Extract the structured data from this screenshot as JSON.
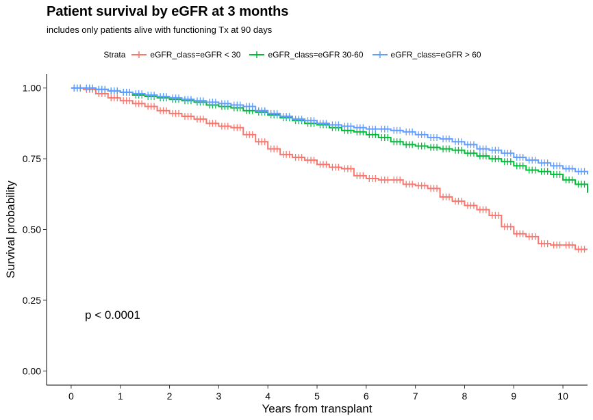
{
  "chart_data": {
    "type": "line",
    "title": "Patient survival by eGFR at 3 months",
    "subtitle": "includes only patients alive with functioning Tx at 90 days",
    "xlabel": "Years from transplant",
    "ylabel": "Survival probability",
    "xlim": [
      -0.5,
      10.5
    ],
    "ylim": [
      -0.05,
      1.05
    ],
    "x_ticks": [
      0,
      1,
      2,
      3,
      4,
      5,
      6,
      7,
      8,
      9,
      10
    ],
    "y_ticks": [
      0.0,
      0.25,
      0.5,
      0.75,
      1.0
    ],
    "y_tick_labels": [
      "0.00",
      "0.25",
      "0.50",
      "0.75",
      "1.00"
    ],
    "grid": false,
    "legend": {
      "title": "Strata",
      "position": "top"
    },
    "annotation": "p < 0.0001",
    "series": [
      {
        "name": "eGFR_class=eGFR < 30",
        "color": "#F8766D",
        "x": [
          0,
          0.25,
          0.5,
          0.75,
          1.0,
          1.25,
          1.5,
          1.75,
          2.0,
          2.25,
          2.5,
          2.75,
          3.0,
          3.25,
          3.5,
          3.75,
          4.0,
          4.25,
          4.5,
          4.75,
          5.0,
          5.25,
          5.5,
          5.75,
          6.0,
          6.25,
          6.5,
          6.75,
          7.0,
          7.25,
          7.5,
          7.75,
          8.0,
          8.25,
          8.5,
          8.75,
          9.0,
          9.25,
          9.5,
          9.75,
          10.0,
          10.25,
          10.5
        ],
        "y": [
          1.0,
          0.995,
          0.98,
          0.965,
          0.955,
          0.945,
          0.935,
          0.92,
          0.91,
          0.9,
          0.89,
          0.875,
          0.865,
          0.86,
          0.835,
          0.81,
          0.785,
          0.765,
          0.755,
          0.745,
          0.73,
          0.72,
          0.715,
          0.69,
          0.68,
          0.675,
          0.675,
          0.66,
          0.655,
          0.645,
          0.615,
          0.6,
          0.585,
          0.57,
          0.55,
          0.51,
          0.485,
          0.475,
          0.45,
          0.445,
          0.445,
          0.43,
          0.43
        ]
      },
      {
        "name": "eGFR_class=eGFR 30-60",
        "color": "#00BA38",
        "x": [
          0,
          0.25,
          0.5,
          0.75,
          1.0,
          1.25,
          1.5,
          1.75,
          2.0,
          2.25,
          2.5,
          2.75,
          3.0,
          3.25,
          3.5,
          3.75,
          4.0,
          4.25,
          4.5,
          4.75,
          5.0,
          5.25,
          5.5,
          5.75,
          6.0,
          6.25,
          6.5,
          6.75,
          7.0,
          7.25,
          7.5,
          7.75,
          8.0,
          8.25,
          8.5,
          8.75,
          9.0,
          9.25,
          9.5,
          9.75,
          10.0,
          10.25,
          10.5
        ],
        "y": [
          1.0,
          1.0,
          0.995,
          0.99,
          0.985,
          0.975,
          0.97,
          0.965,
          0.96,
          0.955,
          0.95,
          0.94,
          0.935,
          0.93,
          0.92,
          0.915,
          0.905,
          0.895,
          0.885,
          0.875,
          0.87,
          0.86,
          0.85,
          0.845,
          0.835,
          0.825,
          0.81,
          0.8,
          0.795,
          0.79,
          0.785,
          0.78,
          0.77,
          0.76,
          0.75,
          0.74,
          0.725,
          0.71,
          0.705,
          0.695,
          0.675,
          0.66,
          0.63
        ]
      },
      {
        "name": "eGFR_class=eGFR > 60",
        "color": "#619CFF",
        "x": [
          0,
          0.25,
          0.5,
          0.75,
          1.0,
          1.25,
          1.5,
          1.75,
          2.0,
          2.25,
          2.5,
          2.75,
          3.0,
          3.25,
          3.5,
          3.75,
          4.0,
          4.25,
          4.5,
          4.75,
          5.0,
          5.25,
          5.5,
          5.75,
          6.0,
          6.25,
          6.5,
          6.75,
          7.0,
          7.25,
          7.5,
          7.75,
          8.0,
          8.25,
          8.5,
          8.75,
          9.0,
          9.25,
          9.5,
          9.75,
          10.0,
          10.25,
          10.5
        ],
        "y": [
          1.0,
          1.0,
          0.995,
          0.99,
          0.985,
          0.98,
          0.975,
          0.97,
          0.965,
          0.96,
          0.955,
          0.95,
          0.945,
          0.94,
          0.935,
          0.92,
          0.91,
          0.9,
          0.89,
          0.885,
          0.875,
          0.87,
          0.865,
          0.86,
          0.855,
          0.855,
          0.85,
          0.845,
          0.835,
          0.825,
          0.82,
          0.81,
          0.8,
          0.785,
          0.78,
          0.77,
          0.755,
          0.745,
          0.735,
          0.725,
          0.715,
          0.705,
          0.695
        ]
      }
    ]
  }
}
